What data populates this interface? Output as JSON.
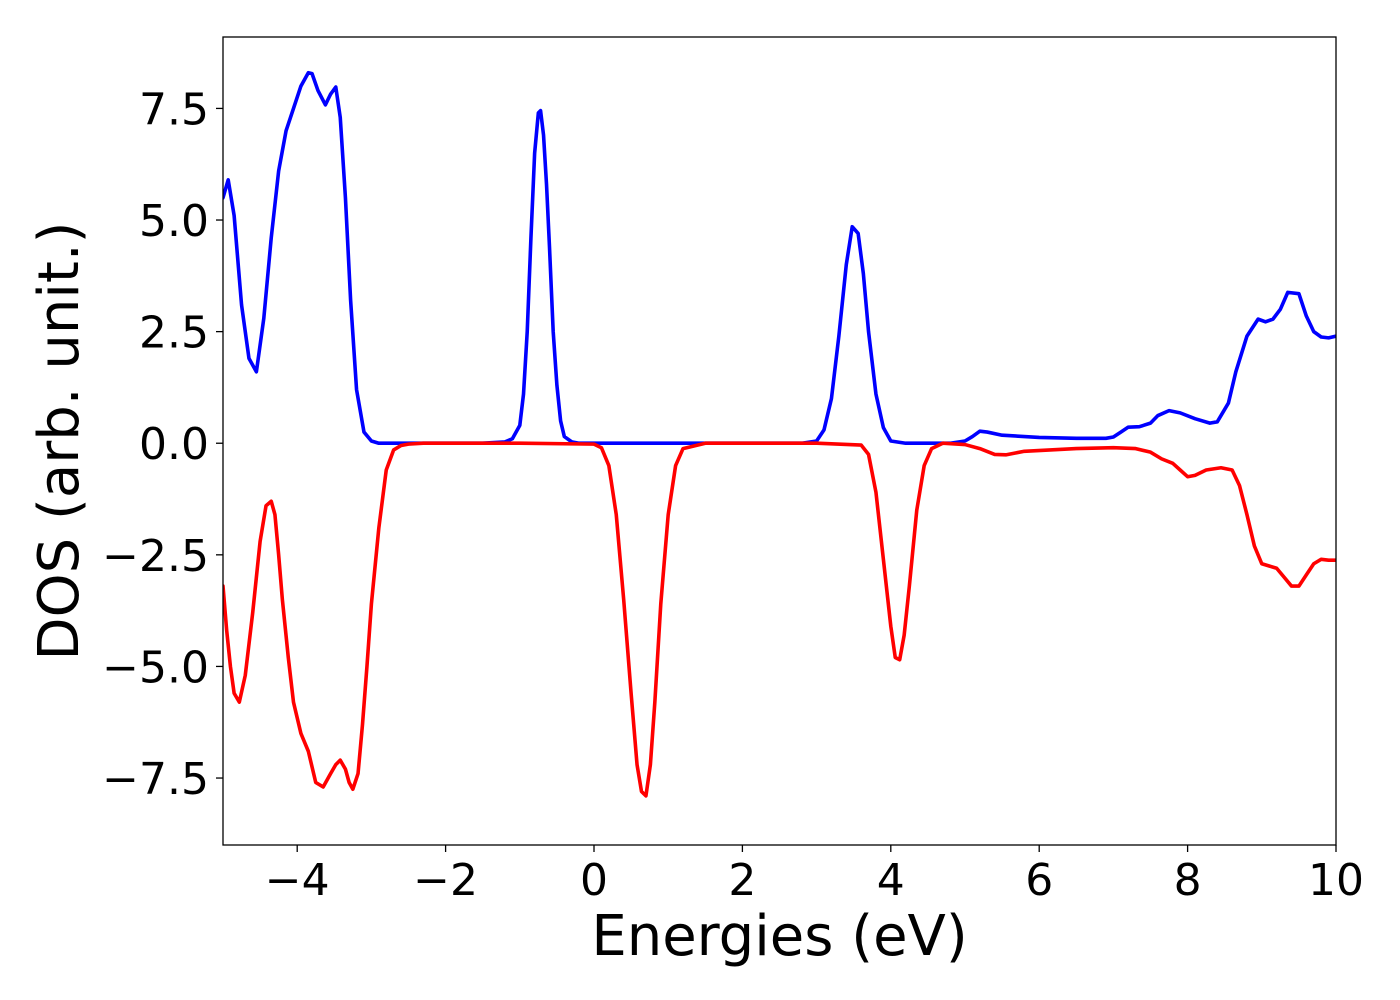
{
  "chart_data": {
    "type": "line",
    "title": "",
    "xlabel": "Energies (eV)",
    "ylabel": "DOS (arb. unit.)",
    "xlim": [
      -5,
      10
    ],
    "ylim": [
      -9.0,
      9.1
    ],
    "xticks": [
      -4,
      -2,
      0,
      2,
      4,
      6,
      8,
      10
    ],
    "xtick_labels": [
      "−4",
      "−2",
      "0",
      "2",
      "4",
      "6",
      "8",
      "10"
    ],
    "yticks": [
      7.5,
      5.0,
      2.5,
      0.0,
      -2.5,
      -5.0,
      -7.5
    ],
    "ytick_labels": [
      "7.5",
      "5.0",
      "2.5",
      "0.0",
      "−2.5",
      "−5.0",
      "−7.5"
    ],
    "grid": false,
    "legend": "none",
    "series": [
      {
        "color": "#0000ff",
        "x": [
          -5.0,
          -4.93,
          -4.85,
          -4.75,
          -4.65,
          -4.55,
          -4.45,
          -4.35,
          -4.25,
          -4.15,
          -4.05,
          -3.95,
          -3.85,
          -3.8,
          -3.72,
          -3.62,
          -3.55,
          -3.48,
          -3.42,
          -3.35,
          -3.28,
          -3.2,
          -3.1,
          -3.0,
          -2.9,
          -2.8,
          -2.5,
          -2.0,
          -1.5,
          -1.2,
          -1.1,
          -1.0,
          -0.95,
          -0.9,
          -0.85,
          -0.8,
          -0.75,
          -0.72,
          -0.68,
          -0.64,
          -0.6,
          -0.55,
          -0.5,
          -0.45,
          -0.4,
          -0.3,
          -0.2,
          0.0,
          1.0,
          2.0,
          2.8,
          3.0,
          3.1,
          3.2,
          3.3,
          3.4,
          3.48,
          3.56,
          3.63,
          3.7,
          3.8,
          3.9,
          4.0,
          4.2,
          4.5,
          4.8,
          5.0,
          5.1,
          5.2,
          5.3,
          5.5,
          6.0,
          6.5,
          6.9,
          7.0,
          7.1,
          7.2,
          7.35,
          7.5,
          7.6,
          7.75,
          7.9,
          8.1,
          8.3,
          8.4,
          8.55,
          8.65,
          8.8,
          8.95,
          9.05,
          9.15,
          9.25,
          9.35,
          9.5,
          9.6,
          9.7,
          9.8,
          9.9,
          10.0
        ],
        "values": [
          5.5,
          5.9,
          5.1,
          3.1,
          1.9,
          1.6,
          2.8,
          4.6,
          6.1,
          7.0,
          7.5,
          8.0,
          8.3,
          8.28,
          7.9,
          7.58,
          7.82,
          7.98,
          7.3,
          5.5,
          3.2,
          1.2,
          0.25,
          0.05,
          0.0,
          0.0,
          0.0,
          0.0,
          0.0,
          0.03,
          0.1,
          0.4,
          1.1,
          2.5,
          4.6,
          6.5,
          7.4,
          7.45,
          6.9,
          5.8,
          4.4,
          2.5,
          1.3,
          0.5,
          0.15,
          0.03,
          0.0,
          0.0,
          0.0,
          0.0,
          0.0,
          0.05,
          0.3,
          1.0,
          2.4,
          4.0,
          4.85,
          4.7,
          3.8,
          2.5,
          1.1,
          0.35,
          0.05,
          0.0,
          0.0,
          0.0,
          0.05,
          0.15,
          0.27,
          0.25,
          0.18,
          0.13,
          0.11,
          0.11,
          0.14,
          0.25,
          0.36,
          0.37,
          0.45,
          0.62,
          0.73,
          0.68,
          0.55,
          0.45,
          0.48,
          0.9,
          1.6,
          2.4,
          2.78,
          2.72,
          2.78,
          3.0,
          3.38,
          3.35,
          2.85,
          2.5,
          2.38,
          2.36,
          2.4
        ]
      },
      {
        "color": "#ff0000",
        "x": [
          -5.0,
          -4.95,
          -4.9,
          -4.85,
          -4.78,
          -4.7,
          -4.6,
          -4.5,
          -4.42,
          -4.35,
          -4.3,
          -4.25,
          -4.2,
          -4.12,
          -4.05,
          -3.95,
          -3.85,
          -3.75,
          -3.65,
          -3.55,
          -3.48,
          -3.42,
          -3.35,
          -3.3,
          -3.25,
          -3.18,
          -3.12,
          -3.06,
          -3.0,
          -2.9,
          -2.8,
          -2.7,
          -2.6,
          -2.5,
          -2.3,
          -2.0,
          -1.0,
          0.0,
          0.1,
          0.2,
          0.3,
          0.4,
          0.5,
          0.58,
          0.64,
          0.7,
          0.76,
          0.82,
          0.9,
          1.0,
          1.1,
          1.2,
          1.5,
          2.0,
          3.0,
          3.6,
          3.7,
          3.8,
          3.9,
          4.0,
          4.06,
          4.12,
          4.18,
          4.25,
          4.35,
          4.45,
          4.55,
          4.7,
          5.0,
          5.2,
          5.4,
          5.55,
          5.8,
          6.5,
          7.0,
          7.3,
          7.5,
          7.65,
          7.8,
          7.9,
          8.0,
          8.1,
          8.25,
          8.45,
          8.6,
          8.7,
          8.8,
          8.9,
          9.0,
          9.1,
          9.2,
          9.3,
          9.4,
          9.5,
          9.6,
          9.7,
          9.8,
          9.9,
          10.0
        ],
        "values": [
          -3.2,
          -4.2,
          -5.0,
          -5.6,
          -5.8,
          -5.2,
          -3.8,
          -2.2,
          -1.4,
          -1.3,
          -1.6,
          -2.5,
          -3.5,
          -4.8,
          -5.8,
          -6.5,
          -6.9,
          -7.6,
          -7.7,
          -7.4,
          -7.2,
          -7.1,
          -7.3,
          -7.6,
          -7.75,
          -7.4,
          -6.3,
          -5.0,
          -3.6,
          -1.9,
          -0.6,
          -0.15,
          -0.05,
          -0.02,
          0.0,
          0.0,
          0.0,
          -0.02,
          -0.1,
          -0.5,
          -1.6,
          -3.5,
          -5.6,
          -7.2,
          -7.8,
          -7.9,
          -7.2,
          -5.8,
          -3.6,
          -1.6,
          -0.5,
          -0.12,
          0.0,
          0.0,
          0.0,
          -0.04,
          -0.25,
          -1.1,
          -2.6,
          -4.1,
          -4.8,
          -4.85,
          -4.3,
          -3.2,
          -1.5,
          -0.5,
          -0.12,
          0.0,
          -0.03,
          -0.12,
          -0.25,
          -0.26,
          -0.18,
          -0.12,
          -0.1,
          -0.12,
          -0.2,
          -0.35,
          -0.45,
          -0.6,
          -0.75,
          -0.72,
          -0.6,
          -0.55,
          -0.6,
          -0.95,
          -1.6,
          -2.3,
          -2.7,
          -2.75,
          -2.8,
          -3.0,
          -3.2,
          -3.2,
          -2.95,
          -2.7,
          -2.6,
          -2.62,
          -2.62
        ]
      }
    ]
  }
}
